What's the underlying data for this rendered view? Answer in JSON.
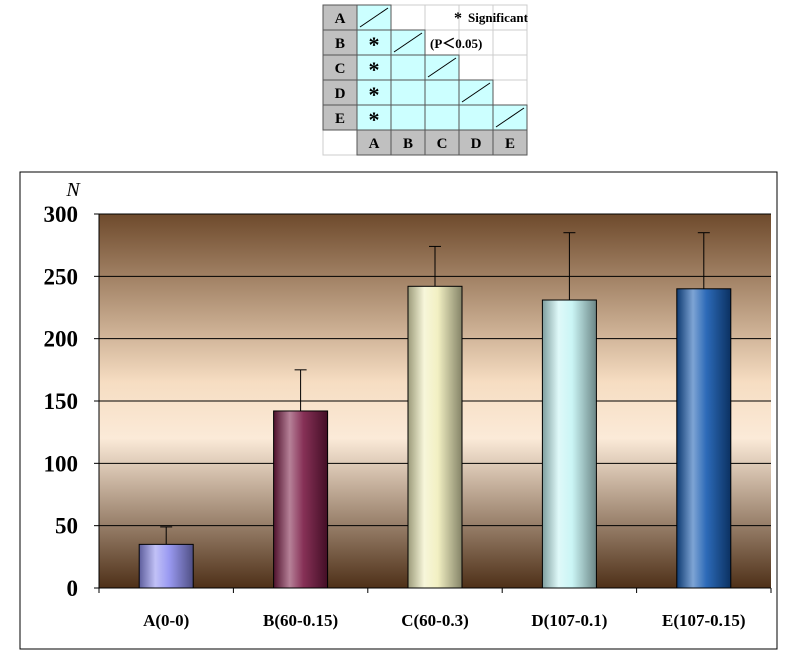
{
  "significance_table": {
    "row_labels": [
      "A",
      "B",
      "C",
      "D",
      "E"
    ],
    "col_labels": [
      "A",
      "B",
      "C",
      "D",
      "E"
    ],
    "marker": "*",
    "significant_pairs": [
      [
        "B",
        "A"
      ],
      [
        "C",
        "A"
      ],
      [
        "D",
        "A"
      ],
      [
        "E",
        "A"
      ]
    ],
    "legend_marker": "*",
    "legend_label": "Significant",
    "legend_condition": "(P＜0.05)",
    "colors": {
      "header": "#c0c0c0",
      "cell": "#ccffff",
      "border": "#555555"
    }
  },
  "chart_data": {
    "type": "bar",
    "title": "",
    "xlabel": "",
    "ylabel": "N",
    "ylim": [
      0,
      300
    ],
    "yticks": [
      0,
      50,
      100,
      150,
      200,
      250,
      300
    ],
    "categories": [
      "A(0-0)",
      "B(60-0.15)",
      "C(60-0.3)",
      "D(107-0.1)",
      "E(107-0.15)"
    ],
    "values": [
      35,
      142,
      242,
      231,
      240
    ],
    "error_upper": [
      49,
      175,
      274,
      285,
      285
    ],
    "bar_colors": [
      "#8f8ff0",
      "#7a1a44",
      "#f0eebc",
      "#c4f4f4",
      "#1459b0"
    ],
    "grid": true,
    "legend": "none"
  }
}
